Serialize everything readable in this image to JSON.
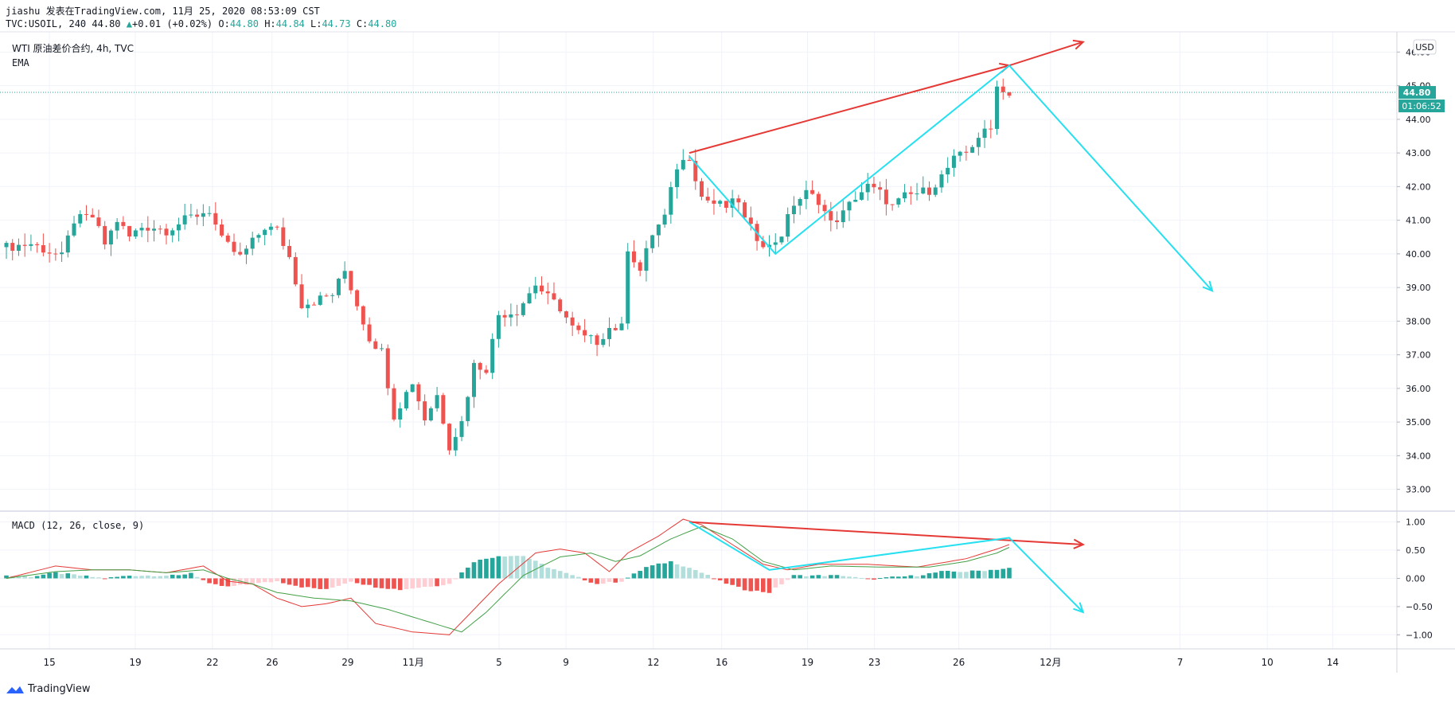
{
  "header": {
    "line1": "jiashu 发表在TradingView.com, 11月 25, 2020 08:53:09 CST",
    "symbol": "TVC:USOIL, 240",
    "last": "44.80",
    "change": "+0.01 (+0.02%)",
    "o_label": "O:",
    "o_val": "44.80",
    "h_label": "H:",
    "h_val": "44.84",
    "l_label": "L:",
    "l_val": "44.73",
    "c_label": "C:",
    "c_val": "44.80"
  },
  "legend": {
    "title": "WTI 原油差价合约, 4h, TVC",
    "ema": "EMA",
    "macd": "MACD (12, 26, close, 9)"
  },
  "currency": "USD",
  "price_badge": "44.80",
  "countdown_badge": "01:06:52",
  "branding": "TradingView",
  "colors": {
    "up": "#26a69a",
    "down": "#ef5350",
    "annot_red": "#e53935",
    "annot_cyan": "#26e0f0",
    "macd_line": "#e53935",
    "signal_line": "#43a047"
  },
  "chart_data": [
    {
      "type": "candlestick",
      "title": "WTI 原油差价合约, 4h, TVC",
      "yticks": [
        33,
        34,
        35,
        36,
        37,
        38,
        39,
        40,
        41,
        42,
        43,
        44,
        45,
        46
      ],
      "ytick_labels": [
        "33.00",
        "34.00",
        "35.00",
        "36.00",
        "37.00",
        "38.00",
        "39.00",
        "40.00",
        "41.00",
        "42.00",
        "43.00",
        "44.00",
        "45.00",
        "46.00"
      ],
      "ylim": [
        32.4,
        46.6
      ],
      "current_price": 44.8,
      "xtick_labels": [
        "15",
        "19",
        "22",
        "26",
        "29",
        "11月",
        "5",
        "9",
        "12",
        "16",
        "19",
        "23",
        "26",
        "12月",
        "7",
        "10",
        "14"
      ],
      "close_path": [
        [
          0,
          40.2
        ],
        [
          4,
          40.3
        ],
        [
          9,
          39.9
        ],
        [
          11,
          41.0
        ],
        [
          14,
          41.1
        ],
        [
          16,
          40.3
        ],
        [
          18,
          41.0
        ],
        [
          20,
          40.5
        ],
        [
          22,
          40.8
        ],
        [
          24,
          40.8
        ],
        [
          26,
          40.7
        ],
        [
          28,
          40.9
        ],
        [
          30,
          41.1
        ],
        [
          33,
          41.3
        ],
        [
          35,
          40.4
        ],
        [
          38,
          39.9
        ],
        [
          42,
          40.8
        ],
        [
          44,
          40.7
        ],
        [
          46,
          39.9
        ],
        [
          48,
          38.5
        ],
        [
          50,
          38.6
        ],
        [
          53,
          38.8
        ],
        [
          55,
          39.5
        ],
        [
          57,
          38.5
        ],
        [
          59,
          37.5
        ],
        [
          61,
          37.1
        ],
        [
          63,
          35.2
        ],
        [
          66,
          36.2
        ],
        [
          68,
          35.1
        ],
        [
          70,
          35.8
        ],
        [
          72,
          34.3
        ],
        [
          74,
          35.0
        ],
        [
          76,
          36.7
        ],
        [
          78,
          36.6
        ],
        [
          80,
          38.2
        ],
        [
          83,
          38.3
        ],
        [
          86,
          39.1
        ],
        [
          88,
          38.7
        ],
        [
          90,
          38.4
        ],
        [
          92,
          37.8
        ],
        [
          94,
          37.5
        ],
        [
          96,
          37.4
        ],
        [
          98,
          37.8
        ],
        [
          100,
          37.8
        ],
        [
          101,
          40.2
        ],
        [
          103,
          39.5
        ],
        [
          105,
          40.6
        ],
        [
          107,
          41.1
        ],
        [
          109,
          42.6
        ],
        [
          111,
          42.9
        ],
        [
          113,
          41.7
        ],
        [
          115,
          41.5
        ],
        [
          117,
          41.4
        ],
        [
          119,
          41.6
        ],
        [
          120,
          41.0
        ],
        [
          122,
          40.5
        ],
        [
          124,
          40.2
        ],
        [
          126,
          40.6
        ],
        [
          128,
          41.5
        ],
        [
          130,
          41.8
        ],
        [
          132,
          41.6
        ],
        [
          134,
          40.9
        ],
        [
          136,
          41.2
        ],
        [
          138,
          41.7
        ],
        [
          140,
          42.0
        ],
        [
          142,
          41.8
        ],
        [
          144,
          41.4
        ],
        [
          146,
          41.7
        ],
        [
          148,
          41.8
        ],
        [
          150,
          41.9
        ],
        [
          152,
          42.3
        ],
        [
          154,
          42.8
        ],
        [
          156,
          43.0
        ],
        [
          158,
          43.5
        ],
        [
          160,
          43.7
        ],
        [
          161,
          45.1
        ],
        [
          162,
          44.8
        ],
        [
          163,
          44.8
        ]
      ],
      "annotations": [
        {
          "color": "red",
          "points": [
            [
              111,
              43.0
            ],
            [
              163,
              45.6
            ]
          ],
          "arrow": "end"
        },
        {
          "color": "red",
          "points": [
            [
              163,
              45.6
            ],
            [
              175,
              46.3
            ]
          ],
          "arrow": "end"
        },
        {
          "color": "cyan",
          "points": [
            [
              111,
              42.9
            ],
            [
              125,
              40.0
            ],
            [
              163,
              45.6
            ],
            [
              196,
              38.9
            ]
          ],
          "arrow": "end"
        }
      ]
    },
    {
      "type": "line",
      "title": "MACD (12, 26, close, 9)",
      "yticks": [
        1.0,
        0.5,
        0.0,
        -0.5,
        -1.0
      ],
      "ytick_labels": [
        "1.00",
        "0.50",
        "0.00",
        "−0.50",
        "−1.00"
      ],
      "ylim": [
        -1.25,
        1.15
      ],
      "series": [
        {
          "name": "MACD",
          "points": [
            [
              0,
              0.0
            ],
            [
              8,
              0.22
            ],
            [
              14,
              0.15
            ],
            [
              20,
              0.15
            ],
            [
              26,
              0.1
            ],
            [
              32,
              0.22
            ],
            [
              36,
              -0.05
            ],
            [
              40,
              -0.1
            ],
            [
              44,
              -0.35
            ],
            [
              48,
              -0.5
            ],
            [
              52,
              -0.45
            ],
            [
              56,
              -0.35
            ],
            [
              60,
              -0.8
            ],
            [
              66,
              -0.95
            ],
            [
              72,
              -1.0
            ],
            [
              76,
              -0.55
            ],
            [
              80,
              -0.1
            ],
            [
              86,
              0.45
            ],
            [
              90,
              0.52
            ],
            [
              94,
              0.45
            ],
            [
              98,
              0.12
            ],
            [
              101,
              0.45
            ],
            [
              106,
              0.75
            ],
            [
              110,
              1.05
            ],
            [
              113,
              0.95
            ],
            [
              118,
              0.6
            ],
            [
              123,
              0.25
            ],
            [
              127,
              0.15
            ],
            [
              132,
              0.25
            ],
            [
              140,
              0.25
            ],
            [
              148,
              0.2
            ],
            [
              156,
              0.35
            ],
            [
              161,
              0.52
            ],
            [
              163,
              0.6
            ]
          ]
        },
        {
          "name": "Signal",
          "points": [
            [
              0,
              0.0
            ],
            [
              8,
              0.12
            ],
            [
              14,
              0.15
            ],
            [
              20,
              0.15
            ],
            [
              26,
              0.1
            ],
            [
              32,
              0.15
            ],
            [
              36,
              0.0
            ],
            [
              40,
              -0.1
            ],
            [
              44,
              -0.25
            ],
            [
              50,
              -0.35
            ],
            [
              56,
              -0.4
            ],
            [
              62,
              -0.55
            ],
            [
              68,
              -0.75
            ],
            [
              74,
              -0.95
            ],
            [
              78,
              -0.6
            ],
            [
              84,
              0.05
            ],
            [
              90,
              0.38
            ],
            [
              95,
              0.45
            ],
            [
              99,
              0.3
            ],
            [
              103,
              0.4
            ],
            [
              108,
              0.7
            ],
            [
              113,
              0.92
            ],
            [
              118,
              0.7
            ],
            [
              123,
              0.3
            ],
            [
              128,
              0.15
            ],
            [
              134,
              0.22
            ],
            [
              142,
              0.2
            ],
            [
              150,
              0.2
            ],
            [
              156,
              0.3
            ],
            [
              161,
              0.45
            ],
            [
              163,
              0.55
            ]
          ]
        }
      ],
      "histogram": [
        [
          0,
          0.05
        ],
        [
          4,
          0.03
        ],
        [
          8,
          0.1
        ],
        [
          12,
          0.05
        ],
        [
          16,
          0.0
        ],
        [
          20,
          0.05
        ],
        [
          24,
          0.05
        ],
        [
          28,
          0.05
        ],
        [
          30,
          0.1
        ],
        [
          33,
          -0.1
        ],
        [
          36,
          -0.15
        ],
        [
          40,
          -0.1
        ],
        [
          44,
          -0.05
        ],
        [
          48,
          -0.15
        ],
        [
          52,
          -0.2
        ],
        [
          56,
          -0.05
        ],
        [
          60,
          -0.15
        ],
        [
          64,
          -0.2
        ],
        [
          68,
          -0.15
        ],
        [
          72,
          -0.1
        ],
        [
          76,
          0.3
        ],
        [
          80,
          0.4
        ],
        [
          84,
          0.4
        ],
        [
          88,
          0.2
        ],
        [
          92,
          0.05
        ],
        [
          96,
          -0.1
        ],
        [
          100,
          -0.05
        ],
        [
          104,
          0.2
        ],
        [
          108,
          0.3
        ],
        [
          112,
          0.15
        ],
        [
          116,
          -0.05
        ],
        [
          120,
          -0.2
        ],
        [
          124,
          -0.25
        ],
        [
          128,
          0.05
        ],
        [
          132,
          0.05
        ],
        [
          136,
          0.05
        ],
        [
          140,
          -0.02
        ],
        [
          144,
          0.02
        ],
        [
          148,
          0.05
        ],
        [
          152,
          0.12
        ],
        [
          156,
          0.12
        ],
        [
          160,
          0.15
        ],
        [
          163,
          0.18
        ]
      ],
      "annotations": [
        {
          "color": "red",
          "points": [
            [
              111,
              1.0
            ],
            [
              175,
              0.6
            ]
          ],
          "arrow": "end"
        },
        {
          "color": "cyan",
          "points": [
            [
              111,
              1.0
            ],
            [
              124,
              0.15
            ],
            [
              163,
              0.72
            ],
            [
              175,
              -0.6
            ]
          ],
          "arrow": "end"
        }
      ]
    }
  ]
}
